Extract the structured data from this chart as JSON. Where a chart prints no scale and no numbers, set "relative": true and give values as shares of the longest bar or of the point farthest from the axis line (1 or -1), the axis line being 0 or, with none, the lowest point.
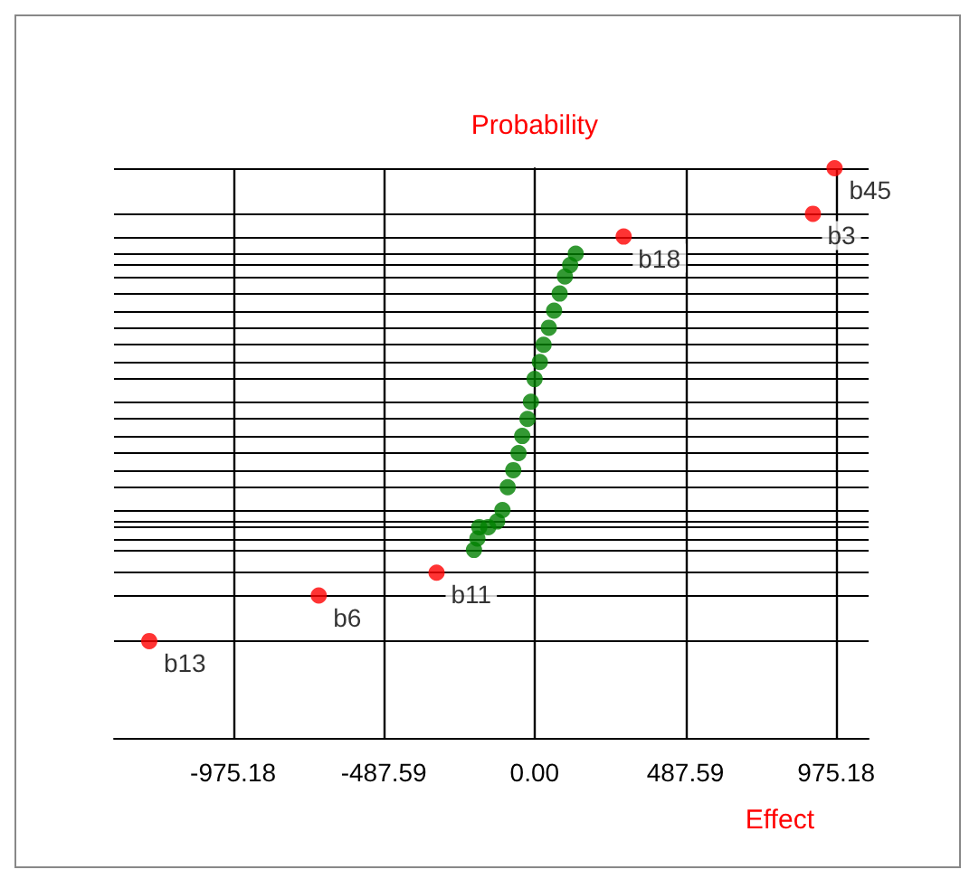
{
  "chart_data": {
    "type": "scatter",
    "xlabel": "Effect",
    "ylabel": "Probability",
    "relative": true,
    "xlim": [
      -1360,
      1080
    ],
    "xticks": [
      -975.18,
      -487.59,
      {
        "value": 0,
        "label": "0.00"
      },
      487.59,
      975.18
    ],
    "grid": true,
    "marker": "circle",
    "series": [
      {
        "color": "#ff0000",
        "x": [
          -1246,
          -698,
          -317,
          288,
          900,
          970
        ],
        "values": [
          0.17,
          0.25,
          0.29,
          0.88,
          0.92,
          1
        ]
      },
      {
        "color": "#008000",
        "x": [
          -196,
          -185,
          -179,
          -150,
          -121,
          -104,
          -87,
          -69,
          -52,
          -40,
          -23,
          -12,
          0,
          17,
          29,
          46,
          63,
          81,
          98,
          115,
          133
        ],
        "values": [
          0.33,
          0.35,
          0.37,
          0.37,
          0.38,
          0.4,
          0.44,
          0.47,
          0.5,
          0.53,
          0.56,
          0.59,
          0.63,
          0.66,
          0.69,
          0.72,
          0.75,
          0.78,
          0.81,
          0.83,
          0.85
        ]
      }
    ],
    "annotations": [
      {
        "text": "b13",
        "x": -1246,
        "y": 0.17
      },
      {
        "text": "b6",
        "x": -698,
        "y": 0.25
      },
      {
        "text": "b11",
        "x": -317,
        "y": 0.29
      },
      {
        "text": "b18",
        "x": 288,
        "y": 0.88
      },
      {
        "text": "b3",
        "x": 900,
        "y": 0.92
      },
      {
        "text": "b45",
        "x": 970,
        "y": 1
      }
    ]
  }
}
